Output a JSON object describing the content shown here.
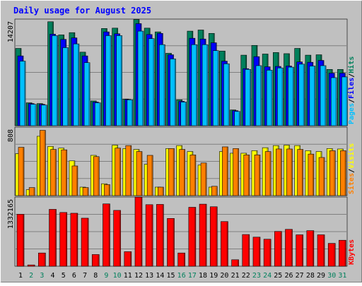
{
  "title": "Daily usage for August 2025",
  "colors": {
    "background": "#C0C0C0",
    "title": "#0000FF",
    "hits": "#00805C",
    "files": "#0000FF",
    "pages": "#00C0FF",
    "visits": "#FFFF00",
    "sites": "#FF8000",
    "kbytes": "#FF0000",
    "weekend_label": "#00805C",
    "weekday_label": "#000000"
  },
  "chart_data": [
    {
      "type": "bar",
      "panel": "hits-files-pages",
      "axis_max_label": "14207",
      "ylim": [
        0,
        14207
      ],
      "grid": true,
      "legend": {
        "position": "right-vertical",
        "labels": [
          "Pages",
          "Files",
          "Hits"
        ],
        "separator": "/"
      },
      "categories": [
        "1",
        "2",
        "3",
        "4",
        "5",
        "6",
        "7",
        "8",
        "9",
        "10",
        "11",
        "12",
        "13",
        "14",
        "15",
        "16",
        "17",
        "18",
        "19",
        "20",
        "21",
        "22",
        "23",
        "24",
        "25",
        "26",
        "27",
        "28",
        "29",
        "30",
        "31"
      ],
      "series": [
        {
          "name": "Hits",
          "values": [
            10300,
            3050,
            2950,
            13850,
            12100,
            12400,
            9800,
            3300,
            12950,
            13000,
            3550,
            14150,
            13000,
            12500,
            9650,
            3450,
            12600,
            12750,
            12300,
            9950,
            2100,
            9400,
            10700,
            9550,
            9750,
            9600,
            10300,
            9400,
            9450,
            7500,
            7500
          ]
        },
        {
          "name": "Files",
          "values": [
            9300,
            2950,
            2850,
            12200,
            11500,
            11700,
            9300,
            3150,
            12500,
            12250,
            3500,
            13600,
            12150,
            12300,
            9450,
            3250,
            11650,
            11550,
            11050,
            8600,
            2000,
            7600,
            9200,
            7850,
            7900,
            7950,
            8500,
            8450,
            8700,
            7000,
            7000
          ]
        },
        {
          "name": "Pages",
          "values": [
            8600,
            2850,
            2750,
            12000,
            10400,
            10900,
            8400,
            3050,
            12000,
            12000,
            3450,
            12600,
            11600,
            10800,
            8900,
            3150,
            10800,
            10800,
            10000,
            8250,
            1900,
            7500,
            8000,
            7400,
            7700,
            7800,
            8200,
            7950,
            8000,
            6400,
            6500
          ]
        }
      ]
    },
    {
      "type": "bar",
      "panel": "visits-sites",
      "axis_max_label": "808",
      "ylim": [
        0,
        808
      ],
      "grid": true,
      "legend": {
        "position": "right-vertical",
        "labels": [
          "Sites",
          "Visits"
        ],
        "separator": "/"
      },
      "categories": [
        "1",
        "2",
        "3",
        "4",
        "5",
        "6",
        "7",
        "8",
        "9",
        "10",
        "11",
        "12",
        "13",
        "14",
        "15",
        "16",
        "17",
        "18",
        "19",
        "20",
        "21",
        "22",
        "23",
        "24",
        "25",
        "26",
        "27",
        "28",
        "29",
        "30",
        "31"
      ],
      "series": [
        {
          "name": "Visits",
          "values": [
            495,
            70,
            700,
            580,
            560,
            410,
            100,
            475,
            140,
            595,
            555,
            545,
            370,
            100,
            555,
            590,
            520,
            360,
            100,
            520,
            500,
            500,
            530,
            565,
            590,
            595,
            590,
            530,
            520,
            555,
            550
          ]
        },
        {
          "name": "Sites",
          "values": [
            570,
            95,
            770,
            545,
            540,
            350,
            95,
            460,
            130,
            560,
            590,
            520,
            475,
            100,
            555,
            545,
            480,
            385,
            110,
            575,
            555,
            480,
            480,
            520,
            550,
            550,
            545,
            490,
            450,
            530,
            530
          ]
        }
      ]
    },
    {
      "type": "bar",
      "panel": "kbytes",
      "axis_max_label": "1332165",
      "ylim": [
        0,
        1332165
      ],
      "grid": true,
      "legend": {
        "position": "right-vertical",
        "labels": [
          "KBytes"
        ],
        "separator": ""
      },
      "categories": [
        "1",
        "2",
        "3",
        "4",
        "5",
        "6",
        "7",
        "8",
        "9",
        "10",
        "11",
        "12",
        "13",
        "14",
        "15",
        "16",
        "17",
        "18",
        "19",
        "20",
        "21",
        "22",
        "23",
        "24",
        "25",
        "26",
        "27",
        "28",
        "29",
        "30",
        "31"
      ],
      "series": [
        {
          "name": "KBytes",
          "values": [
            1000000,
            25000,
            255000,
            1095000,
            1035000,
            1020000,
            925000,
            225000,
            1200000,
            1075000,
            280000,
            1330000,
            1185000,
            1190000,
            920000,
            255000,
            1135000,
            1195000,
            1145000,
            860000,
            125000,
            610000,
            560000,
            520000,
            670000,
            710000,
            605000,
            685000,
            605000,
            440000,
            500000
          ]
        }
      ]
    }
  ],
  "x_labels": [
    "1",
    "2",
    "3",
    "4",
    "5",
    "6",
    "7",
    "8",
    "9",
    "10",
    "11",
    "12",
    "13",
    "14",
    "15",
    "16",
    "17",
    "18",
    "19",
    "20",
    "21",
    "22",
    "23",
    "24",
    "25",
    "26",
    "27",
    "28",
    "29",
    "30",
    "31"
  ],
  "weekend_days": [
    2,
    3,
    9,
    10,
    16,
    17,
    23,
    24,
    30,
    31
  ]
}
